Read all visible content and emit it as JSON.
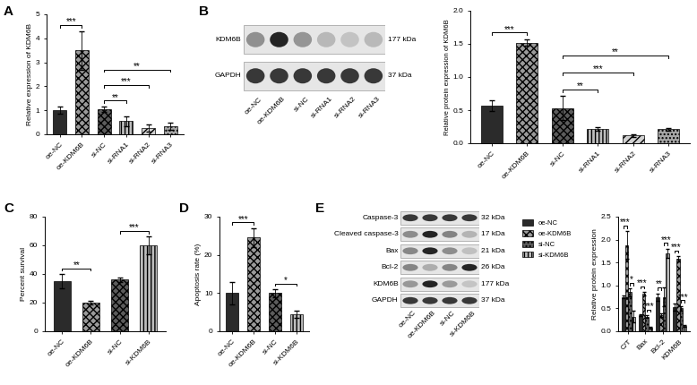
{
  "chart_data": [
    {
      "type": "bar",
      "panel": "A",
      "y_label": "Relative expression of KDM6B",
      "categories": [
        "oe-NC",
        "oe-KDM6B",
        "si-NC",
        "si-RNA1",
        "si-RNA2",
        "si-RNA3"
      ],
      "values": [
        1.0,
        3.5,
        1.05,
        0.55,
        0.25,
        0.35
      ],
      "errors": [
        0.15,
        0.8,
        0.1,
        0.2,
        0.15,
        0.15
      ],
      "colors": [
        "#2b2b2b",
        "#9a9a9a",
        "#5c5c5c",
        "#bdbdbd",
        "#d0d0d0",
        "#a6a6a6"
      ],
      "ylim": [
        0,
        5
      ],
      "yticks": [
        0,
        1,
        2,
        3,
        4,
        5
      ],
      "annotations": [
        {
          "from": 0,
          "to": 1,
          "text": "***"
        },
        {
          "from": 2,
          "to": 3,
          "text": "**"
        },
        {
          "from": 2,
          "to": 4,
          "text": "***"
        },
        {
          "from": 2,
          "to": 5,
          "text": "**"
        }
      ]
    },
    {
      "type": "bar",
      "y_label": "Relative protein expression of KDM6B",
      "categories": [
        "oe-NC",
        "oe-KDM6B",
        "si-NC",
        "si-RNA1",
        "si-RNA2",
        "si-RNA3"
      ],
      "values": [
        0.57,
        1.52,
        0.53,
        0.22,
        0.12,
        0.21
      ],
      "errors": [
        0.08,
        0.05,
        0.18,
        0.03,
        0.02,
        0.02
      ],
      "colors": [
        "#2b2b2b",
        "#9a9a9a",
        "#5c5c5c",
        "#bdbdbd",
        "#d0d0d0",
        "#a6a6a6"
      ],
      "ylim": [
        0,
        2
      ],
      "yticks": [
        {
          "value": 0,
          "label": "0.0"
        },
        {
          "value": 0.5,
          "label": "0.5"
        },
        {
          "value": 1,
          "label": "1.0"
        },
        {
          "value": 1.5,
          "label": "1.5"
        },
        {
          "value": 2,
          "label": "2.0"
        }
      ],
      "annotations": [
        {
          "from": 0,
          "to": 1,
          "text": "***"
        },
        {
          "from": 2,
          "to": 3,
          "text": "**"
        },
        {
          "from": 2,
          "to": 4,
          "text": "***"
        },
        {
          "from": 2,
          "to": 5,
          "text": "**"
        }
      ]
    },
    {
      "type": "bar",
      "panel": "C",
      "y_label": "Percent survival",
      "categories": [
        "oe-NC",
        "oe-KDM6B",
        "si-NC",
        "si-KDM6B"
      ],
      "values": [
        35,
        20,
        36,
        60
      ],
      "errors": [
        5,
        1.5,
        1.5,
        6
      ],
      "colors": [
        "#2b2b2b",
        "#9a9a9a",
        "#5c5c5c",
        "#bdbdbd"
      ],
      "ylim": [
        0,
        80
      ],
      "yticks": [
        0,
        20,
        40,
        60,
        80
      ],
      "annotations": [
        {
          "from": 0,
          "to": 1,
          "text": "**"
        },
        {
          "from": 2,
          "to": 3,
          "text": "***"
        }
      ]
    },
    {
      "type": "bar",
      "panel": "D",
      "y_label": "Apoptosis rate (%)",
      "categories": [
        "oe-NC",
        "oe-KDM6B",
        "si-NC",
        "si-KDM6B"
      ],
      "values": [
        10,
        24.5,
        10,
        4.5
      ],
      "errors": [
        3,
        2.5,
        1,
        1
      ],
      "colors": [
        "#2b2b2b",
        "#9a9a9a",
        "#5c5c5c",
        "#bdbdbd"
      ],
      "ylim": [
        0,
        30
      ],
      "yticks": [
        0,
        10,
        20,
        30
      ],
      "annotations": [
        {
          "from": 0,
          "to": 1,
          "text": "***"
        },
        {
          "from": 2,
          "to": 3,
          "text": "*"
        }
      ]
    },
    {
      "type": "bar",
      "y_label": "Relative protein expression",
      "categories": [
        "C/T",
        "Bax",
        "Bcl-2",
        "KDM6B"
      ],
      "series": [
        {
          "name": "oe-NC",
          "color": "#2b2b2b",
          "values": [
            0.75,
            0.35,
            0.75,
            0.52
          ],
          "errors": [
            0.03,
            0.02,
            0.08,
            0.08
          ]
        },
        {
          "name": "oe-KDM6B",
          "color": "#9a9a9a",
          "values": [
            1.88,
            0.82,
            0.35,
            1.58
          ],
          "errors": [
            0.3,
            0.04,
            0.04,
            0.06
          ]
        },
        {
          "name": "si-NC",
          "color": "#5c5c5c",
          "values": [
            0.85,
            0.32,
            0.75,
            0.5
          ],
          "errors": [
            0.08,
            0.03,
            0.2,
            0.05
          ]
        },
        {
          "name": "si-KDM6B",
          "color": "#bdbdbd",
          "values": [
            0.32,
            0.08,
            1.7,
            0.12
          ],
          "errors": [
            0.12,
            0.02,
            0.1,
            0.02
          ]
        }
      ],
      "legend": "upper left",
      "ylim": [
        0,
        2.5
      ],
      "yticks": [
        {
          "value": 0,
          "label": "0.0"
        },
        {
          "value": 0.5,
          "label": "0.5"
        },
        {
          "value": 1,
          "label": "1.0"
        },
        {
          "value": 1.5,
          "label": "1.5"
        },
        {
          "value": 2,
          "label": "2.0"
        },
        {
          "value": 2.5,
          "label": "2.5"
        }
      ],
      "annotations": [
        {
          "category": 0,
          "from": 0,
          "to": 1,
          "text": "***"
        },
        {
          "category": 0,
          "from": 2,
          "to": 3,
          "text": "*"
        },
        {
          "category": 1,
          "from": 0,
          "to": 1,
          "text": "***"
        },
        {
          "category": 1,
          "from": 2,
          "to": 3,
          "text": "***"
        },
        {
          "category": 2,
          "from": 0,
          "to": 1,
          "text": "**"
        },
        {
          "category": 2,
          "from": 2,
          "to": 3,
          "text": "***"
        },
        {
          "category": 3,
          "from": 0,
          "to": 1,
          "text": "***"
        },
        {
          "category": 3,
          "from": 2,
          "to": 3,
          "text": "***"
        }
      ]
    }
  ],
  "blots": [
    {
      "panel": "B",
      "lanes": [
        "oe-NC",
        "oe-KDM6B",
        "si-NC",
        "si-RNA1",
        "si-RNA2",
        "si-RNA3"
      ],
      "rows": [
        {
          "label": "KDM6B",
          "size": "177 kDa"
        },
        {
          "label": "GAPDH",
          "size": "37 kDa"
        }
      ]
    },
    {
      "panel": "E",
      "lanes": [
        "oe-NC",
        "oe-KDM6B",
        "si-NC",
        "si-KDM6B"
      ],
      "rows": [
        {
          "label": "Caspase-3",
          "size": "32 kDa"
        },
        {
          "label": "Cleaved caspase-3",
          "size": "17 kDa"
        },
        {
          "label": "Bax",
          "size": "21 kDa"
        },
        {
          "label": "Bcl-2",
          "size": "26 kDa"
        },
        {
          "label": "KDM6B",
          "size": "177 kDa"
        },
        {
          "label": "GAPDH",
          "size": "37 kDa"
        }
      ]
    }
  ]
}
